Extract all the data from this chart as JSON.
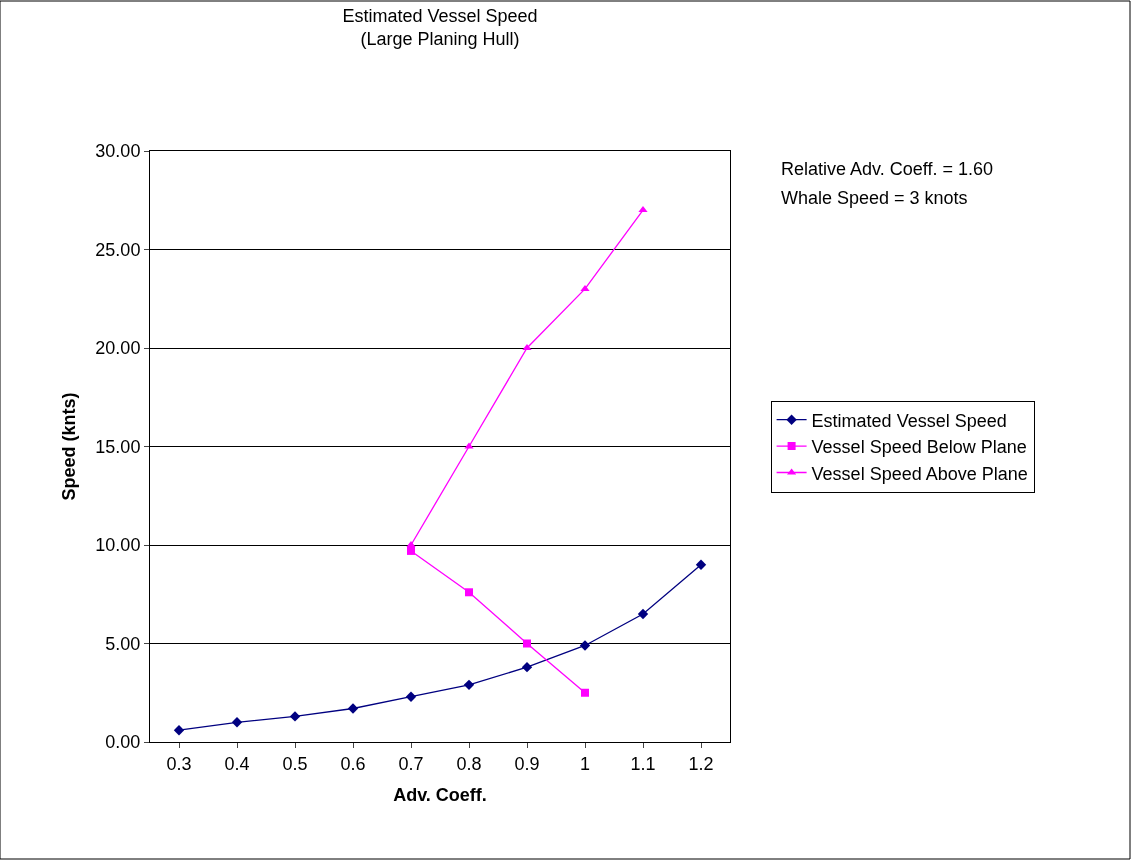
{
  "chart_data": {
    "type": "line",
    "title": "Estimated Vessel Speed",
    "subtitle": "(Large Planing Hull)",
    "xlabel": "Adv. Coeff.",
    "ylabel": "Speed (knts)",
    "categories": [
      "0.3",
      "0.4",
      "0.5",
      "0.6",
      "0.7",
      "0.8",
      "0.9",
      "1",
      "1.1",
      "1.2"
    ],
    "series": [
      {
        "name": "Estimated Vessel Speed",
        "color": "#000080",
        "marker": "diamond",
        "values": [
          0.6,
          1.0,
          1.3,
          1.7,
          2.3,
          2.9,
          3.8,
          4.9,
          6.5,
          9.0
        ]
      },
      {
        "name": "Vessel Speed Below Plane",
        "color": "#ff00ff",
        "marker": "square",
        "values": [
          null,
          null,
          null,
          null,
          9.7,
          7.6,
          5.0,
          2.5,
          null,
          null
        ]
      },
      {
        "name": "Vessel Speed Above Plane",
        "color": "#ff00ff",
        "marker": "triangle",
        "values": [
          null,
          null,
          null,
          null,
          10.0,
          15.0,
          20.0,
          23.0,
          27.0,
          null
        ]
      }
    ],
    "ylim": [
      0,
      30
    ],
    "yticks": [
      {
        "value": 0,
        "label": "0.00"
      },
      {
        "value": 5,
        "label": "5.00"
      },
      {
        "value": 10,
        "label": "10.00"
      },
      {
        "value": 15,
        "label": "15.00"
      },
      {
        "value": 20,
        "label": "20.00"
      },
      {
        "value": 25,
        "label": "25.00"
      },
      {
        "value": 30,
        "label": "30.00"
      }
    ],
    "grid": "y",
    "legend": "right",
    "annotations": [
      "Relative Adv. Coeff. = 1.60",
      "Whale Speed = 3 knots"
    ]
  }
}
